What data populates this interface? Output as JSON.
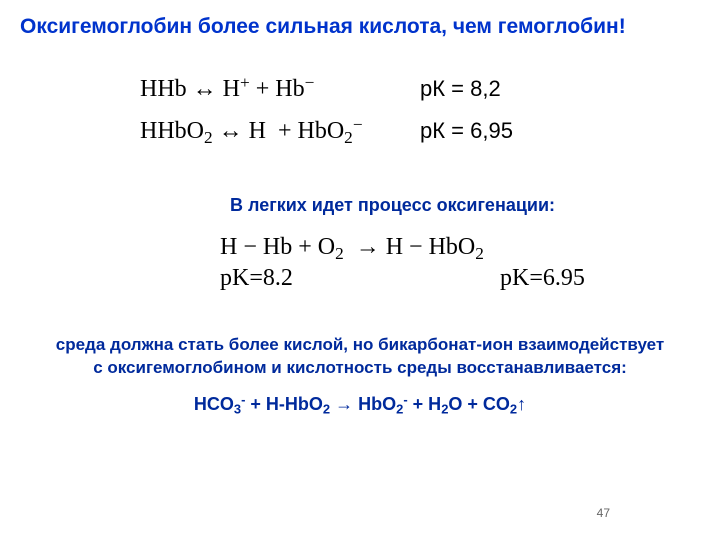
{
  "colors": {
    "title": "#0033cc",
    "subtitle": "#002a9c",
    "body": "#000000",
    "conclusion": "#002a9c",
    "eqFinal": "#002a9c",
    "page": "#808080"
  },
  "title": "Оксигемоглобин более сильная кислота, чем гемоглобин!",
  "eq1": {
    "row1_lhs_html": "HHb <span class='arr'>↔</span> H<sup>+</sup> + Hb<sup>−</sup>",
    "row1_rhs_html": "pК = 8,2",
    "row2_lhs_html": "HHbO<sub>2</sub> <span class='arr'>↔</span> H&nbsp;&nbsp;+ HbO<sub>2</sub><sup>−</sup>",
    "row2_rhs_html": "pК = 6,95"
  },
  "subtitle": "В легких идет процесс оксигенации:",
  "eq2": {
    "line1_html": "H − Hb + O<sub>2</sub>&nbsp;&nbsp;→&nbsp;H − HbO<sub>2</sub>",
    "pkL_html": "pK=8.2",
    "pkR_html": "pK=6.95"
  },
  "conclusion": "среда должна стать более кислой, но бикарбонат-ион взаимодействует с оксигемоглобином и кислотность среды восстанавливается:",
  "finalEq_html": "HCO<sub>3</sub><sup>-</sup> + H-HbO<sub>2</sub> → HbO<sub>2</sub><sup>-</sup> + H<sub>2</sub>O + CO<sub>2</sub>↑",
  "pageNumber": "47"
}
